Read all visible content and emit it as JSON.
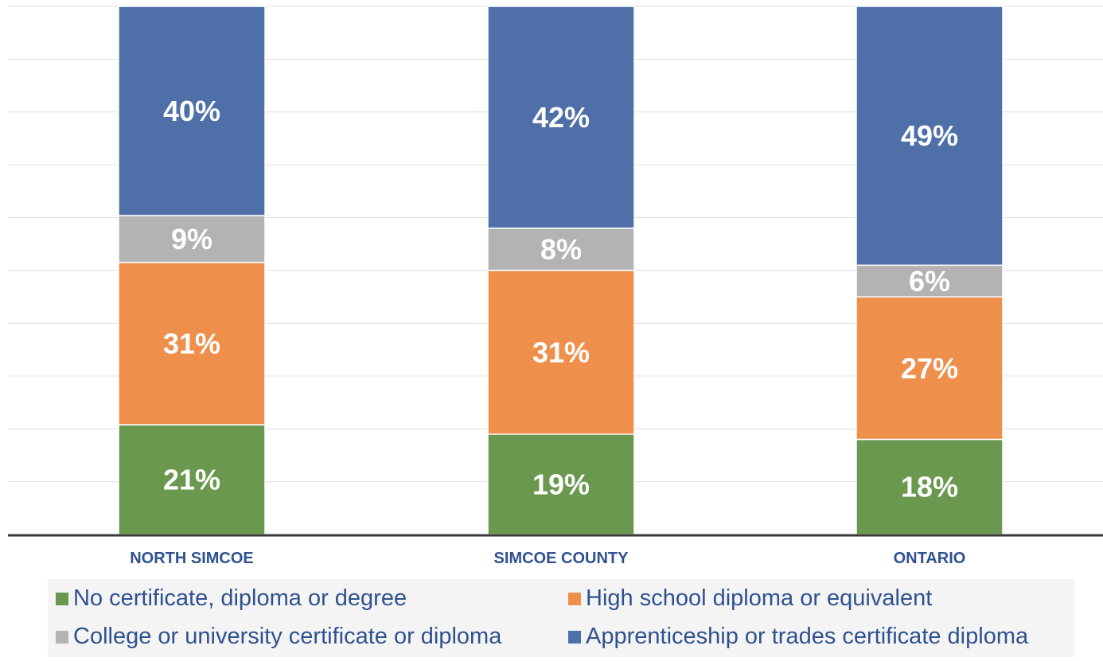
{
  "chart_data": {
    "type": "bar",
    "stacked": true,
    "categories": [
      "NORTH SIMCOE",
      "SIMCOE COUNTY",
      "ONTARIO"
    ],
    "series": [
      {
        "name": "No certificate, diploma or degree",
        "color": "#6a984f",
        "values": [
          21,
          19,
          18
        ],
        "labels": [
          "21%",
          "19%",
          "18%"
        ]
      },
      {
        "name": "High school diploma or equivalent",
        "color": "#ef8f4c",
        "values": [
          31,
          31,
          27
        ],
        "labels": [
          "31%",
          "31%",
          "27%"
        ]
      },
      {
        "name": "College or university certificate or diploma",
        "color": "#b3b3b3",
        "values": [
          9,
          8,
          6
        ],
        "labels": [
          "9%",
          "8%",
          "6%"
        ]
      },
      {
        "name": "Apprenticeship or trades certificate diploma",
        "color": "#4e6fa8",
        "values": [
          40,
          42,
          49
        ],
        "labels": [
          "40%",
          "42%",
          "49%"
        ]
      }
    ],
    "ylim": [
      0,
      100
    ],
    "grid": true,
    "legend_position": "bottom"
  }
}
